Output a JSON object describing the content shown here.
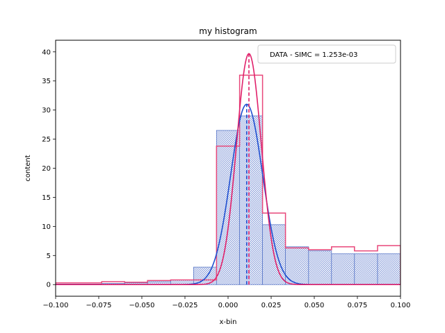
{
  "chart_data": {
    "type": "bar",
    "title": "my histogram",
    "xlabel": "x-bin",
    "ylabel": "content",
    "xlim": [
      -0.1,
      0.1
    ],
    "ylim": [
      -2,
      42
    ],
    "xticks": [
      -0.1,
      -0.075,
      -0.05,
      -0.025,
      0.0,
      0.025,
      0.05,
      0.075,
      0.1
    ],
    "xtick_labels": [
      "−0.100",
      "−0.075",
      "−0.050",
      "−0.025",
      "0.000",
      "0.025",
      "0.050",
      "0.075",
      "0.100"
    ],
    "yticks": [
      0,
      5,
      10,
      15,
      20,
      25,
      30,
      35,
      40
    ],
    "ytick_labels": [
      "0",
      "5",
      "10",
      "15",
      "20",
      "25",
      "30",
      "35",
      "40"
    ],
    "grid": false,
    "legend_position": "top-right",
    "legend_text": "DATA - SIMC = 1.253e-03",
    "bin_edges": [
      -0.1,
      -0.0867,
      -0.0733,
      -0.06,
      -0.0467,
      -0.0333,
      -0.02,
      -0.0067,
      0.0067,
      0.02,
      0.0333,
      0.0467,
      0.06,
      0.0733,
      0.0867,
      0.1
    ],
    "series": [
      {
        "role": "histogram-filled",
        "color": "#5a78c8",
        "values": [
          0.1,
          0.1,
          0.2,
          0.3,
          0.5,
          0.8,
          3.0,
          26.5,
          29.0,
          10.3,
          6.5,
          5.8,
          5.3,
          5.3,
          5.3
        ]
      },
      {
        "role": "histogram-step",
        "color": "#e8477a",
        "values": [
          0.3,
          0.3,
          0.5,
          0.4,
          0.7,
          0.8,
          0.8,
          23.8,
          36.0,
          12.3,
          6.3,
          6.0,
          6.5,
          5.8,
          6.7
        ]
      },
      {
        "role": "gaussian-fit",
        "color": "#1f4fd0",
        "amplitude": 31.0,
        "mean": 0.0108,
        "sigma": 0.0093
      },
      {
        "role": "gaussian-fit",
        "color": "#e0206a",
        "amplitude": 39.7,
        "mean": 0.0121,
        "sigma": 0.0072
      }
    ],
    "mean_lines": [
      {
        "x": 0.0108,
        "color": "#1f4fd0"
      },
      {
        "x": 0.0121,
        "color": "#e0206a"
      }
    ]
  }
}
